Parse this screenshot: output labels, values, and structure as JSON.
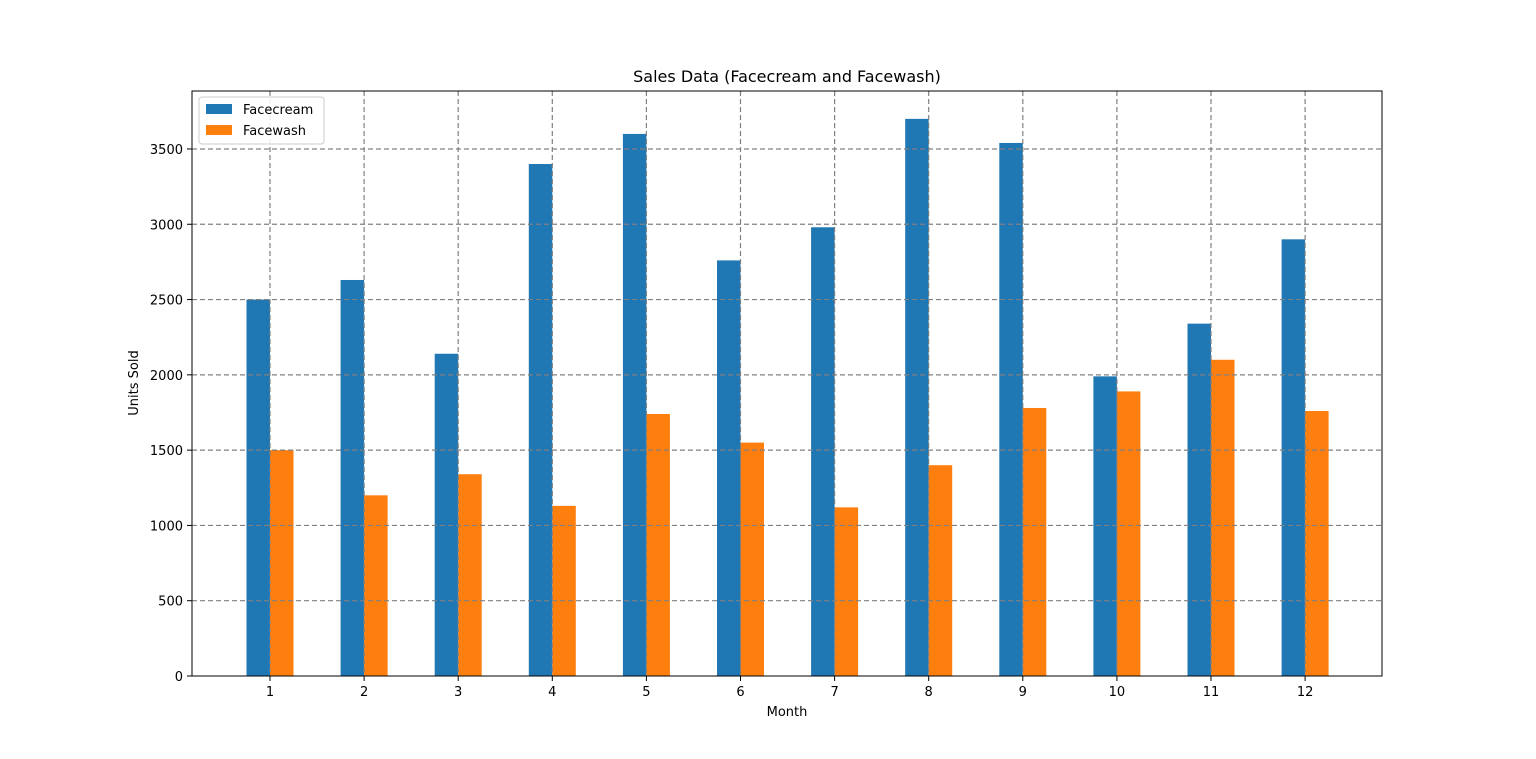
{
  "chart_data": {
    "type": "bar",
    "title": "Sales Data (Facecream and Facewash)",
    "xlabel": "Month",
    "ylabel": "Units Sold",
    "categories": [
      "1",
      "2",
      "3",
      "4",
      "5",
      "6",
      "7",
      "8",
      "9",
      "10",
      "11",
      "12"
    ],
    "series": [
      {
        "name": "Facecream",
        "color": "#1f77b4",
        "values": [
          2500,
          2630,
          2140,
          3400,
          3600,
          2760,
          2980,
          3700,
          3540,
          1990,
          2340,
          2900
        ]
      },
      {
        "name": "Facewash",
        "color": "#ff7f0e",
        "values": [
          1500,
          1200,
          1340,
          1130,
          1740,
          1550,
          1120,
          1400,
          1780,
          1890,
          2100,
          1760
        ]
      }
    ],
    "yticks": [
      "0",
      "500",
      "1000",
      "1500",
      "2000",
      "2500",
      "3000",
      "3500"
    ],
    "ylim": [
      0,
      3885
    ],
    "grid": true,
    "grid_style": "dashed",
    "grid_color": "#808080",
    "legend_position": "top-left"
  }
}
